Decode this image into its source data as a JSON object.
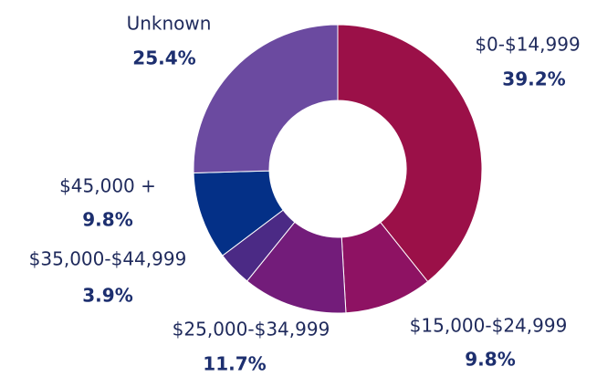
{
  "chart_data": {
    "type": "donut",
    "categories": [
      "$0-$14,999",
      "$15,000-$24,999",
      "$25,000-$34,999",
      "$35,000-$44,999",
      "$45,000 +",
      "Unknown"
    ],
    "values": [
      39.2,
      9.8,
      11.7,
      3.9,
      9.8,
      25.4
    ],
    "value_labels": [
      "39.2%",
      "9.8%",
      "11.7%",
      "3.9%",
      "9.8%",
      "25.4%"
    ],
    "colors": [
      "#9b1048",
      "#8e1263",
      "#731c7a",
      "#4b2a85",
      "#043087",
      "#6b4aa0"
    ]
  }
}
